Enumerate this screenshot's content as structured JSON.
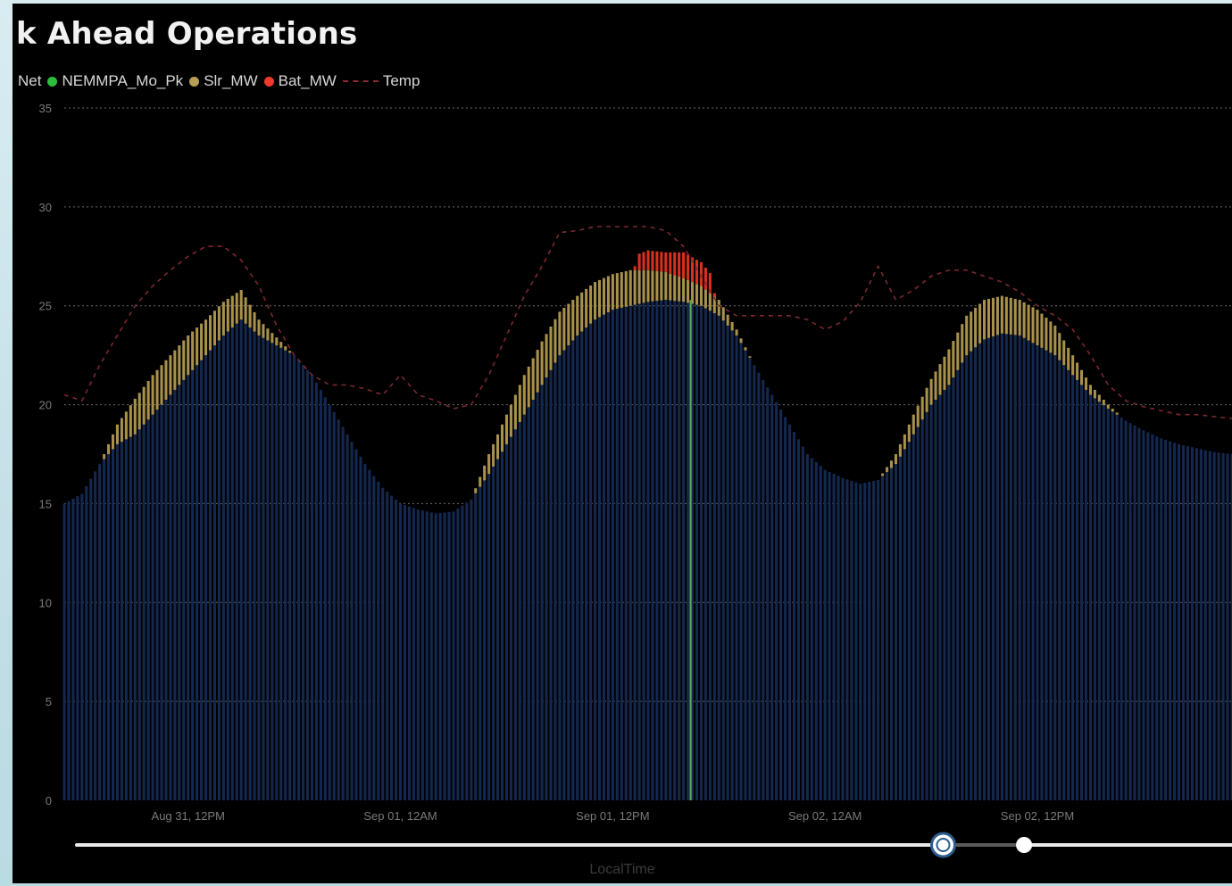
{
  "title": "k Ahead Operations",
  "legend": [
    {
      "label": "Net",
      "color": null,
      "kind": "text"
    },
    {
      "label": "NEMMPA_Mo_Pk",
      "color": "#2bbf3b",
      "kind": "dot"
    },
    {
      "label": "Slr_MW",
      "color": "#b7a055",
      "kind": "dot"
    },
    {
      "label": "Bat_MW",
      "color": "#ee3a2a",
      "kind": "dot"
    },
    {
      "label": "Temp",
      "color": "#8a2a33",
      "kind": "dash"
    }
  ],
  "colors": {
    "net": "#14284f",
    "solar": "#a8914c",
    "battery": "#d9301f",
    "temp": "#7d2730",
    "marker": "#5aa85a",
    "grid": "#6a6a6a",
    "tick": "#7a7a7a",
    "slider_track": "#e8e8e8",
    "slider_track_dim": "#5a5a5a",
    "slider_handle_ring": "#2d5d8e"
  },
  "chart_data": {
    "type": "bar",
    "stacked": true,
    "ylim": [
      0,
      35
    ],
    "yticks": [
      "0",
      "5",
      "10",
      "15",
      "20",
      "25",
      "30",
      "35"
    ],
    "xlim_hours": [
      0,
      66
    ],
    "x_tick_labels": [
      "Aug 31, 12PM",
      "Sep 01, 12AM",
      "Sep 01, 12PM",
      "Sep 02, 12AM",
      "Sep 02, 12PM"
    ],
    "x_tick_hours": [
      7,
      19,
      31,
      43,
      55
    ],
    "xlabel": "LocalTime",
    "marker_hour": 35.4,
    "series_net_key_points": [
      [
        0,
        15
      ],
      [
        1,
        15.5
      ],
      [
        2,
        17
      ],
      [
        3,
        18
      ],
      [
        4,
        18.5
      ],
      [
        5,
        19.5
      ],
      [
        6,
        20.5
      ],
      [
        7,
        21.5
      ],
      [
        8,
        22.5
      ],
      [
        9,
        23.5
      ],
      [
        10,
        24.3
      ],
      [
        11,
        23.5
      ],
      [
        12,
        23
      ],
      [
        13,
        22.5
      ],
      [
        14,
        21.5
      ],
      [
        15,
        20
      ],
      [
        16,
        18.5
      ],
      [
        17,
        17
      ],
      [
        18,
        15.8
      ],
      [
        19,
        15
      ],
      [
        20,
        14.7
      ],
      [
        21,
        14.5
      ],
      [
        22,
        14.6
      ],
      [
        23,
        15.2
      ],
      [
        24,
        16.5
      ],
      [
        25,
        18
      ],
      [
        26,
        19.5
      ],
      [
        27,
        21
      ],
      [
        28,
        22.5
      ],
      [
        29,
        23.5
      ],
      [
        30,
        24.3
      ],
      [
        31,
        24.8
      ],
      [
        32,
        25
      ],
      [
        33,
        25.2
      ],
      [
        34,
        25.3
      ],
      [
        35,
        25.2
      ],
      [
        36,
        25
      ],
      [
        37,
        24.5
      ],
      [
        38,
        23.5
      ],
      [
        39,
        22
      ],
      [
        40,
        20.5
      ],
      [
        41,
        19
      ],
      [
        42,
        17.5
      ],
      [
        43,
        16.7
      ],
      [
        44,
        16.3
      ],
      [
        45,
        16
      ],
      [
        46,
        16.2
      ],
      [
        47,
        17
      ],
      [
        48,
        18.5
      ],
      [
        49,
        20
      ],
      [
        50,
        21
      ],
      [
        51,
        22.5
      ],
      [
        52,
        23.3
      ],
      [
        53,
        23.6
      ],
      [
        54,
        23.5
      ],
      [
        55,
        23
      ],
      [
        56,
        22.5
      ],
      [
        57,
        21.5
      ],
      [
        58,
        20.5
      ],
      [
        59,
        19.8
      ],
      [
        60,
        19.2
      ],
      [
        61,
        18.7
      ],
      [
        62,
        18.3
      ],
      [
        63,
        18
      ],
      [
        64,
        17.8
      ],
      [
        65,
        17.6
      ],
      [
        66,
        17.5
      ]
    ],
    "series_solar_key_points": [
      [
        0,
        0
      ],
      [
        2,
        0
      ],
      [
        2.5,
        0.5
      ],
      [
        3,
        1
      ],
      [
        4,
        1.8
      ],
      [
        5,
        2
      ],
      [
        6,
        2
      ],
      [
        7,
        2
      ],
      [
        8,
        1.8
      ],
      [
        9,
        1.7
      ],
      [
        10,
        1.5
      ],
      [
        11,
        0.8
      ],
      [
        12,
        0.4
      ],
      [
        13,
        0
      ],
      [
        23,
        0
      ],
      [
        23.5,
        0.5
      ],
      [
        24,
        1
      ],
      [
        25,
        1.5
      ],
      [
        26,
        2
      ],
      [
        27,
        2.2
      ],
      [
        28,
        2.2
      ],
      [
        29,
        2
      ],
      [
        30,
        1.9
      ],
      [
        31,
        1.8
      ],
      [
        32,
        1.8
      ],
      [
        33,
        1.6
      ],
      [
        34,
        1.4
      ],
      [
        35,
        1.2
      ],
      [
        36,
        1.0
      ],
      [
        37,
        0.8
      ],
      [
        38,
        0.3
      ],
      [
        39,
        0
      ],
      [
        46,
        0
      ],
      [
        47,
        0.5
      ],
      [
        48,
        1
      ],
      [
        49,
        1.3
      ],
      [
        50,
        1.8
      ],
      [
        51,
        2
      ],
      [
        52,
        2
      ],
      [
        53,
        1.9
      ],
      [
        54,
        1.8
      ],
      [
        55,
        1.8
      ],
      [
        56,
        1.5
      ],
      [
        57,
        1
      ],
      [
        58,
        0.5
      ],
      [
        59,
        0.2
      ],
      [
        60,
        0
      ]
    ],
    "series_battery_key_points": [
      [
        0,
        0
      ],
      [
        32.2,
        0
      ],
      [
        32.4,
        0.8
      ],
      [
        33,
        1
      ],
      [
        34,
        1
      ],
      [
        35,
        1.3
      ],
      [
        36,
        1.2
      ],
      [
        36.5,
        1
      ],
      [
        36.8,
        0
      ],
      [
        66,
        0
      ]
    ],
    "series_temp_key_points": [
      [
        0,
        20.5
      ],
      [
        1,
        20.2
      ],
      [
        2,
        22
      ],
      [
        3,
        23.5
      ],
      [
        4,
        25
      ],
      [
        5,
        26
      ],
      [
        6,
        26.8
      ],
      [
        7,
        27.5
      ],
      [
        8,
        28
      ],
      [
        9,
        28
      ],
      [
        10,
        27.3
      ],
      [
        11,
        26
      ],
      [
        12,
        24
      ],
      [
        13,
        22.5
      ],
      [
        14,
        21.5
      ],
      [
        15,
        21
      ],
      [
        16,
        21
      ],
      [
        17,
        20.8
      ],
      [
        18,
        20.5
      ],
      [
        19,
        21.5
      ],
      [
        20,
        20.5
      ],
      [
        21,
        20.2
      ],
      [
        22,
        19.8
      ],
      [
        23,
        20
      ],
      [
        24,
        21.5
      ],
      [
        25,
        23.5
      ],
      [
        26,
        25.5
      ],
      [
        27,
        27
      ],
      [
        28,
        28.7
      ],
      [
        29,
        28.8
      ],
      [
        30,
        29
      ],
      [
        31,
        29
      ],
      [
        32,
        29
      ],
      [
        33,
        29
      ],
      [
        34,
        28.8
      ],
      [
        35,
        28
      ],
      [
        36,
        26.5
      ],
      [
        37,
        25
      ],
      [
        38,
        24.5
      ],
      [
        39,
        24.5
      ],
      [
        40,
        24.5
      ],
      [
        41,
        24.5
      ],
      [
        42,
        24.3
      ],
      [
        43,
        23.8
      ],
      [
        44,
        24.2
      ],
      [
        45,
        25.2
      ],
      [
        46,
        27
      ],
      [
        47,
        25.3
      ],
      [
        48,
        25.8
      ],
      [
        49,
        26.5
      ],
      [
        50,
        26.8
      ],
      [
        51,
        26.8
      ],
      [
        52,
        26.5
      ],
      [
        53,
        26.2
      ],
      [
        54,
        25.7
      ],
      [
        55,
        25
      ],
      [
        56,
        24.5
      ],
      [
        57,
        23.8
      ],
      [
        58,
        22.5
      ],
      [
        59,
        21
      ],
      [
        60,
        20.2
      ],
      [
        61,
        19.9
      ],
      [
        62,
        19.7
      ],
      [
        63,
        19.5
      ],
      [
        64,
        19.5
      ],
      [
        65,
        19.4
      ],
      [
        66,
        19.3
      ]
    ],
    "slider_range_fraction": [
      0.75,
      0.82
    ]
  }
}
